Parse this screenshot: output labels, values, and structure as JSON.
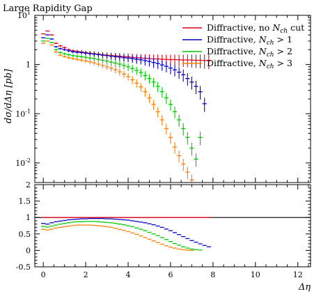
{
  "chart_data": {
    "type": "scatter",
    "title": "Large Rapidity Gap",
    "xlabel": "Δη",
    "ylabel": "dσ/dΔη [pb]",
    "legend_position": "top-right",
    "x": [
      0.0,
      0.2,
      0.4,
      0.6,
      0.8,
      1.0,
      1.2,
      1.4,
      1.6,
      1.8,
      2.0,
      2.2,
      2.4,
      2.6,
      2.8,
      3.0,
      3.2,
      3.4,
      3.6,
      3.8,
      4.0,
      4.2,
      4.4,
      4.6,
      4.8,
      5.0,
      5.2,
      5.4,
      5.6,
      5.8,
      6.0,
      6.2,
      6.4,
      6.6,
      6.8,
      7.0,
      7.2,
      7.4,
      7.6,
      7.8
    ],
    "top_panel": {
      "yscale": "log",
      "ylim": [
        0.004,
        10
      ],
      "xlim": [
        -0.4,
        12.6
      ],
      "series": [
        {
          "name": "Diffractive, no N_ch cut",
          "color": "#e0001a",
          "values": [
            4.2,
            4.8,
            4.0,
            2.7,
            2.4,
            2.2,
            2.0,
            1.9,
            1.85,
            1.8,
            1.75,
            1.7,
            1.66,
            1.62,
            1.58,
            1.55,
            1.52,
            1.5,
            1.47,
            1.45,
            1.43,
            1.4,
            1.38,
            1.36,
            1.34,
            1.32,
            1.3,
            1.3,
            1.28,
            1.27,
            1.26,
            1.26,
            1.25,
            1.24,
            1.24,
            1.23,
            1.22,
            1.22,
            1.21,
            1.2
          ]
        },
        {
          "name": "Diffractive, N_ch > 1",
          "color": "#0000c8",
          "values": [
            3.5,
            4.0,
            3.3,
            2.3,
            2.1,
            2.0,
            1.9,
            1.82,
            1.78,
            1.75,
            1.7,
            1.67,
            1.63,
            1.59,
            1.55,
            1.52,
            1.48,
            1.45,
            1.42,
            1.38,
            1.35,
            1.32,
            1.28,
            1.25,
            1.2,
            1.16,
            1.1,
            1.05,
            0.98,
            0.92,
            0.85,
            0.78,
            0.7,
            0.62,
            0.52,
            0.44,
            0.36,
            0.28,
            0.16,
            null
          ]
        },
        {
          "name": "Diffractive, N_ch > 2",
          "color": "#00c800",
          "values": [
            3.0,
            3.4,
            2.8,
            2.0,
            1.75,
            1.65,
            1.58,
            1.52,
            1.48,
            1.44,
            1.4,
            1.36,
            1.32,
            1.27,
            1.22,
            1.17,
            1.12,
            1.07,
            1.02,
            0.96,
            0.9,
            0.83,
            0.76,
            0.69,
            0.6,
            0.52,
            0.44,
            0.36,
            0.28,
            0.21,
            0.155,
            0.11,
            0.075,
            0.05,
            0.033,
            0.02,
            0.012,
            0.033,
            null,
            null
          ]
        },
        {
          "name": "Diffractive, N_ch > 3",
          "color": "#ff7f00",
          "values": [
            2.7,
            3.0,
            2.5,
            1.8,
            1.55,
            1.45,
            1.38,
            1.32,
            1.27,
            1.23,
            1.18,
            1.13,
            1.08,
            1.02,
            0.96,
            0.9,
            0.84,
            0.78,
            0.71,
            0.64,
            0.57,
            0.49,
            0.42,
            0.35,
            0.28,
            0.21,
            0.155,
            0.11,
            0.075,
            0.05,
            0.033,
            0.021,
            0.014,
            0.0095,
            0.0065,
            0.0045,
            null,
            null,
            null,
            null
          ]
        }
      ]
    },
    "ratio_panel": {
      "ylim": [
        -0.5,
        2
      ],
      "xlim": [
        -0.4,
        12.6
      ],
      "reference_line": {
        "color": "#000000",
        "value": 1
      },
      "series": [
        {
          "name": "Diffractive, no N_ch cut",
          "color": "#e0001a",
          "values": [
            1,
            1,
            1,
            1,
            1,
            1,
            1,
            1,
            1,
            1,
            1,
            1,
            1,
            1,
            1,
            1,
            1,
            1,
            1,
            1,
            1,
            1,
            1,
            1,
            1,
            1,
            1,
            1,
            1,
            1,
            1,
            1,
            1,
            1,
            1,
            1,
            1,
            1,
            1,
            1
          ]
        },
        {
          "name": "Diffractive, N_ch > 1",
          "color": "#0000c8",
          "values": [
            0.82,
            0.8,
            0.84,
            0.87,
            0.89,
            0.91,
            0.93,
            0.94,
            0.95,
            0.96,
            0.96,
            0.97,
            0.97,
            0.97,
            0.97,
            0.96,
            0.96,
            0.95,
            0.94,
            0.93,
            0.92,
            0.9,
            0.88,
            0.86,
            0.84,
            0.81,
            0.78,
            0.74,
            0.7,
            0.65,
            0.6,
            0.54,
            0.48,
            0.42,
            0.36,
            0.3,
            0.25,
            0.2,
            0.15,
            0.11
          ]
        },
        {
          "name": "Diffractive, N_ch > 2",
          "color": "#00c800",
          "values": [
            0.73,
            0.71,
            0.74,
            0.77,
            0.8,
            0.82,
            0.84,
            0.86,
            0.87,
            0.87,
            0.88,
            0.88,
            0.88,
            0.87,
            0.86,
            0.85,
            0.84,
            0.82,
            0.8,
            0.78,
            0.75,
            0.72,
            0.68,
            0.64,
            0.6,
            0.55,
            0.5,
            0.45,
            0.39,
            0.33,
            0.27,
            0.21,
            0.16,
            0.11,
            0.07,
            0.04,
            0.02,
            0.01,
            null,
            null
          ]
        },
        {
          "name": "Diffractive, N_ch > 3",
          "color": "#ff7f00",
          "values": [
            0.64,
            0.62,
            0.65,
            0.68,
            0.7,
            0.72,
            0.74,
            0.76,
            0.77,
            0.77,
            0.77,
            0.77,
            0.76,
            0.75,
            0.74,
            0.72,
            0.7,
            0.67,
            0.64,
            0.61,
            0.57,
            0.53,
            0.49,
            0.44,
            0.39,
            0.34,
            0.29,
            0.24,
            0.19,
            0.14,
            0.1,
            0.07,
            0.04,
            0.02,
            0.01,
            0.0,
            null,
            null,
            null,
            null
          ]
        }
      ]
    },
    "x_ticks": [
      0,
      2,
      4,
      6,
      8,
      10,
      12
    ],
    "ratio_y_ticks": [
      -0.5,
      0,
      0.5,
      1,
      1.5,
      2
    ]
  }
}
